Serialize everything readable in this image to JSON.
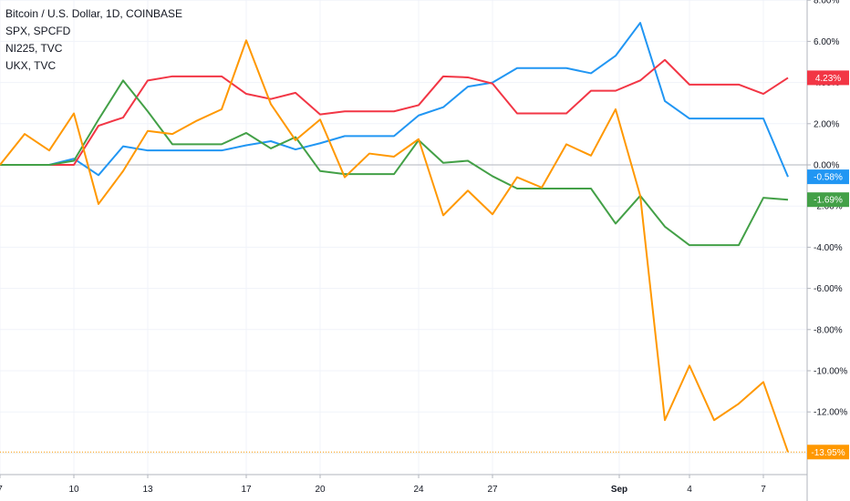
{
  "legend": {
    "line1": "Bitcoin / U.S. Dollar, 1D, COINBASE",
    "line2": "SPX, SPCFD",
    "line3": "NI225, TVC",
    "line4": "UKX, TVC"
  },
  "chart_data": {
    "type": "line",
    "y_ticks": [
      "8.00%",
      "6.00%",
      "4.00%",
      "2.00%",
      "0.00%",
      "-2.00%",
      "-4.00%",
      "-6.00%",
      "-8.00%",
      "-10.00%",
      "-12.00%",
      "-14.00%"
    ],
    "y_tick_values": [
      8,
      6,
      4,
      2,
      0,
      -2,
      -4,
      -6,
      -8,
      -10,
      -12,
      -14
    ],
    "ylim": [
      -14.7,
      8
    ],
    "x_ticks": [
      {
        "label": "7",
        "i": 0
      },
      {
        "label": "10",
        "i": 3
      },
      {
        "label": "13",
        "i": 6
      },
      {
        "label": "17",
        "i": 10
      },
      {
        "label": "20",
        "i": 13
      },
      {
        "label": "24",
        "i": 17
      },
      {
        "label": "27",
        "i": 20
      },
      {
        "label": "Sep",
        "i": 25
      },
      {
        "label": "4",
        "i": 28
      },
      {
        "label": "7",
        "i": 31
      }
    ],
    "x_count": 33,
    "series": [
      {
        "key": "spx",
        "color": "#2196f3",
        "values": [
          0,
          0,
          0,
          0.3,
          -0.5,
          0.9,
          0.7,
          0.7,
          0.7,
          0.7,
          0.95,
          1.15,
          0.75,
          1.05,
          1.4,
          1.4,
          1.4,
          2.4,
          2.8,
          3.8,
          4.0,
          4.7,
          4.7,
          4.7,
          4.45,
          5.3,
          6.9,
          3.1,
          2.25,
          2.25,
          2.25,
          2.25,
          -0.58
        ],
        "label": "-0.58%"
      },
      {
        "key": "ni225",
        "color": "#f23645",
        "values": [
          0,
          0,
          0,
          0,
          1.9,
          2.3,
          4.1,
          4.3,
          4.3,
          4.3,
          3.45,
          3.2,
          3.5,
          2.45,
          2.6,
          2.6,
          2.6,
          2.9,
          4.3,
          4.25,
          3.95,
          2.5,
          2.5,
          2.5,
          3.6,
          3.6,
          4.1,
          5.1,
          3.9,
          3.9,
          3.9,
          3.45,
          4.23
        ],
        "label": "4.23%"
      },
      {
        "key": "ukx",
        "color": "#43a047",
        "values": [
          0,
          0,
          0,
          0.2,
          2.2,
          4.1,
          2.6,
          1.0,
          1.0,
          1.0,
          1.55,
          0.8,
          1.35,
          -0.3,
          -0.45,
          -0.45,
          -0.45,
          1.2,
          0.1,
          0.2,
          -0.55,
          -1.15,
          -1.15,
          -1.15,
          -1.15,
          -2.85,
          -1.5,
          -3.0,
          -3.9,
          -3.9,
          -3.9,
          -1.6,
          -1.69
        ],
        "label": "-1.69%"
      },
      {
        "key": "btc",
        "color": "#ff9800",
        "values": [
          0,
          1.5,
          0.7,
          2.5,
          -1.9,
          -0.3,
          1.65,
          1.5,
          2.15,
          2.7,
          6.05,
          2.95,
          1.2,
          2.2,
          -0.6,
          0.55,
          0.4,
          1.25,
          -2.45,
          -1.25,
          -2.4,
          -0.6,
          -1.1,
          1.0,
          0.45,
          2.7,
          -1.5,
          -12.4,
          -9.75,
          -12.4,
          -11.6,
          -10.55,
          -13.95
        ],
        "label": "-13.95%"
      }
    ]
  }
}
